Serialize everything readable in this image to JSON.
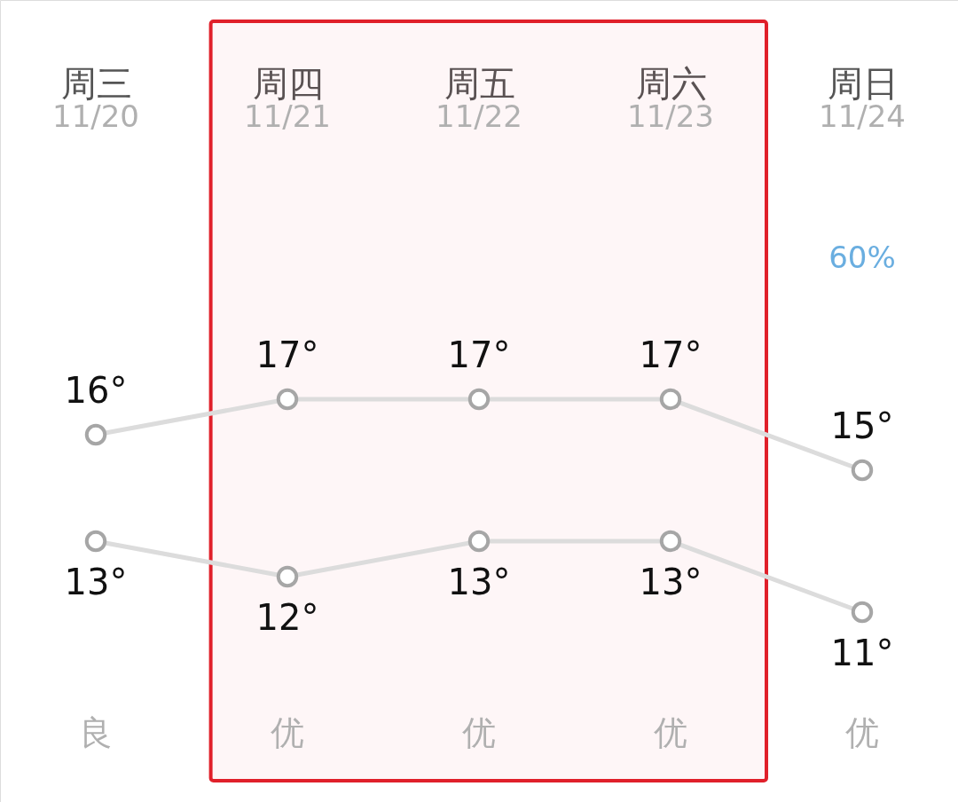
{
  "chart_data": {
    "type": "line",
    "categories": [
      "周三",
      "周四",
      "周五",
      "周六",
      "周日"
    ],
    "series": [
      {
        "color": "#dcdcdc",
        "values": [
          16,
          17,
          17,
          17,
          15
        ],
        "value_labels": [
          "16°",
          "17°",
          "17°",
          "17°",
          "15°"
        ]
      },
      {
        "color": "#dcdcdc",
        "values": [
          13,
          12,
          13,
          13,
          11
        ],
        "value_labels": [
          "13°",
          "12°",
          "13°",
          "13°",
          "11°"
        ]
      }
    ],
    "marker": "circle",
    "line_style": "solid",
    "tick_labels": "x",
    "bands": [
      {
        "axis": "x",
        "from": "周四",
        "to": "周六",
        "color": "#e0202a"
      }
    ],
    "annotations": [
      "11/20",
      "11/21",
      "11/22",
      "11/23",
      "11/24",
      "60%",
      "良",
      "优",
      "优",
      "优",
      "优"
    ]
  }
}
